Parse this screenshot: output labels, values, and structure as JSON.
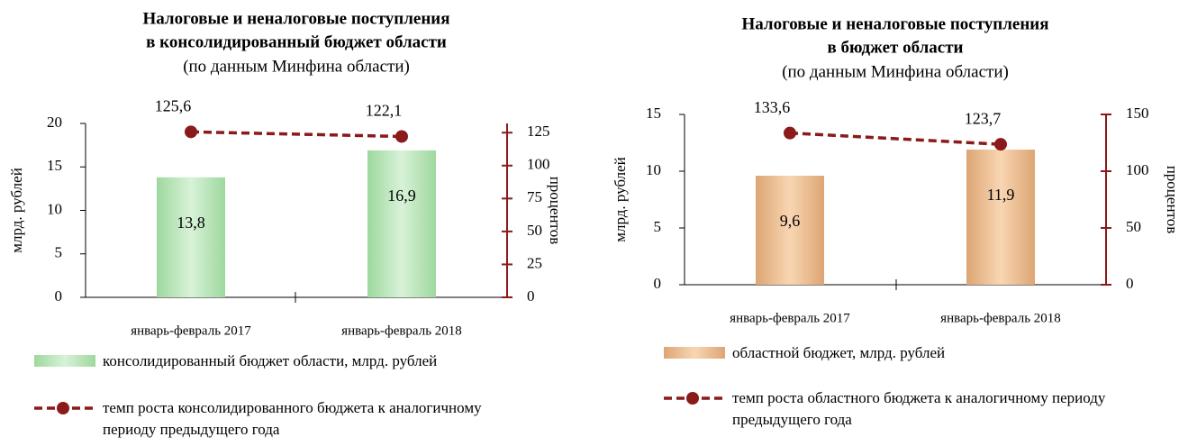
{
  "chart_data": [
    {
      "type": "bar",
      "title": [
        "Налоговые и неналоговые поступления",
        "в консолидированный бюджет  области"
      ],
      "subtitle": "(по данным Минфина области)",
      "y_label": "млрд. рублей",
      "y2_label": "процентов",
      "categories": [
        "январь-февраль 2017",
        "январь-февраль 2018"
      ],
      "ylim": [
        0,
        20
      ],
      "yticks": [
        0,
        5,
        10,
        15,
        20
      ],
      "y2lim": [
        0,
        132
      ],
      "y2ticks": [
        0,
        25,
        50,
        75,
        100,
        125
      ],
      "series": [
        {
          "name": "консолидированный  бюджет области, млрд. рублей",
          "type": "bar",
          "color": "#b3e3b3",
          "values": [
            13.8,
            16.9
          ],
          "value_labels": [
            "13,8",
            "16,9"
          ]
        },
        {
          "name": "темп роста консолидированного  бюджета к аналогичному периоду  предыдущего года",
          "type": "line",
          "axis": "y2",
          "color": "#8b1a1a",
          "values": [
            125.6,
            122.1
          ],
          "value_labels": [
            "125,6",
            "122,1"
          ]
        }
      ]
    },
    {
      "type": "bar",
      "title": [
        "Налоговые и неналоговые поступления",
        "в бюджет области"
      ],
      "subtitle": "(по данным Минфина области)",
      "y_label": "млрд. рублей",
      "y2_label": "процентов",
      "categories": [
        "январь-февраль 2017",
        "январь-февраль 2018"
      ],
      "ylim": [
        0,
        15
      ],
      "yticks": [
        0,
        5,
        10,
        15
      ],
      "y2lim": [
        0,
        150
      ],
      "y2ticks": [
        0,
        50,
        100,
        150
      ],
      "series": [
        {
          "name": "областной бюджет, млрд. рублей",
          "type": "bar",
          "color": "#e8b98a",
          "values": [
            9.6,
            11.9
          ],
          "value_labels": [
            "9,6",
            "11,9"
          ]
        },
        {
          "name": "темп роста областного  бюджета к аналогичному периоду  предыдущего  года",
          "type": "line",
          "axis": "y2",
          "color": "#8b1a1a",
          "values": [
            133.6,
            123.7
          ],
          "value_labels": [
            "133,6",
            "123,7"
          ]
        }
      ]
    }
  ]
}
